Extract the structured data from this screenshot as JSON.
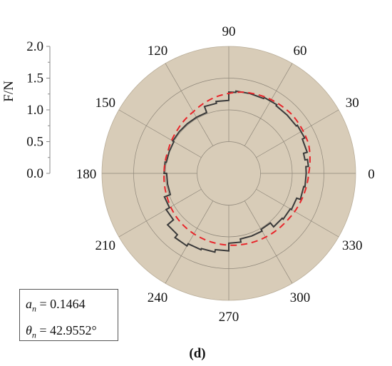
{
  "chart_data": {
    "type": "polar-line",
    "title": "",
    "ylabel": "F/N",
    "panel_label": "(d)",
    "radial_range": [
      0,
      2.0
    ],
    "radial_ticks": [
      "0.0",
      "0.5",
      "1.0",
      "1.5",
      "2.0"
    ],
    "angular_ticks": [
      "0",
      "30",
      "60",
      "90",
      "120",
      "150",
      "180",
      "210",
      "240",
      "270",
      "300",
      "330"
    ],
    "grid": true,
    "background_color": "#d8ccb8",
    "series": [
      {
        "style": "solid",
        "color": "#3a3a3a",
        "points": [
          {
            "theta": 0,
            "r": 1.22
          },
          {
            "theta": 5,
            "r": 1.26
          },
          {
            "theta": 10,
            "r": 1.22
          },
          {
            "theta": 15,
            "r": 1.28
          },
          {
            "theta": 25,
            "r": 1.32
          },
          {
            "theta": 35,
            "r": 1.3
          },
          {
            "theta": 45,
            "r": 1.3
          },
          {
            "theta": 55,
            "r": 1.32
          },
          {
            "theta": 65,
            "r": 1.3
          },
          {
            "theta": 75,
            "r": 1.3
          },
          {
            "theta": 85,
            "r": 1.28
          },
          {
            "theta": 90,
            "r": 1.15
          },
          {
            "theta": 100,
            "r": 1.12
          },
          {
            "theta": 110,
            "r": 1.02
          },
          {
            "theta": 120,
            "r": 1.02
          },
          {
            "theta": 130,
            "r": 1.02
          },
          {
            "theta": 140,
            "r": 1.02
          },
          {
            "theta": 150,
            "r": 1.0
          },
          {
            "theta": 160,
            "r": 1.0
          },
          {
            "theta": 170,
            "r": 1.02
          },
          {
            "theta": 180,
            "r": 0.98
          },
          {
            "theta": 190,
            "r": 0.98
          },
          {
            "theta": 200,
            "r": 1.08
          },
          {
            "theta": 210,
            "r": 1.14
          },
          {
            "theta": 220,
            "r": 1.26
          },
          {
            "theta": 230,
            "r": 1.32
          },
          {
            "theta": 240,
            "r": 1.28
          },
          {
            "theta": 250,
            "r": 1.26
          },
          {
            "theta": 260,
            "r": 1.22
          },
          {
            "theta": 270,
            "r": 1.1
          },
          {
            "theta": 280,
            "r": 1.05
          },
          {
            "theta": 290,
            "r": 1.05
          },
          {
            "theta": 300,
            "r": 1.02
          },
          {
            "theta": 310,
            "r": 1.1
          },
          {
            "theta": 320,
            "r": 1.12
          },
          {
            "theta": 330,
            "r": 1.14
          },
          {
            "theta": 340,
            "r": 1.2
          },
          {
            "theta": 350,
            "r": 1.22
          },
          {
            "theta": 360,
            "r": 1.22
          }
        ]
      },
      {
        "style": "dashed",
        "color": "#e8262b",
        "points": [
          {
            "theta": 0,
            "r": 1.26
          },
          {
            "theta": 20,
            "r": 1.34
          },
          {
            "theta": 43,
            "r": 1.36
          },
          {
            "theta": 60,
            "r": 1.34
          },
          {
            "theta": 80,
            "r": 1.3
          },
          {
            "theta": 100,
            "r": 1.22
          },
          {
            "theta": 120,
            "r": 1.12
          },
          {
            "theta": 140,
            "r": 1.06
          },
          {
            "theta": 160,
            "r": 1.02
          },
          {
            "theta": 180,
            "r": 1.02
          },
          {
            "theta": 200,
            "r": 1.04
          },
          {
            "theta": 223,
            "r": 1.08
          },
          {
            "theta": 240,
            "r": 1.1
          },
          {
            "theta": 260,
            "r": 1.12
          },
          {
            "theta": 280,
            "r": 1.14
          },
          {
            "theta": 300,
            "r": 1.16
          },
          {
            "theta": 320,
            "r": 1.18
          },
          {
            "theta": 340,
            "r": 1.22
          },
          {
            "theta": 360,
            "r": 1.26
          }
        ]
      }
    ],
    "annotations": [
      {
        "symbol": "a",
        "subscript": "n",
        "value": "= 0.1464"
      },
      {
        "symbol": "θ",
        "subscript": "n",
        "value": "= 42.9552°"
      }
    ]
  }
}
